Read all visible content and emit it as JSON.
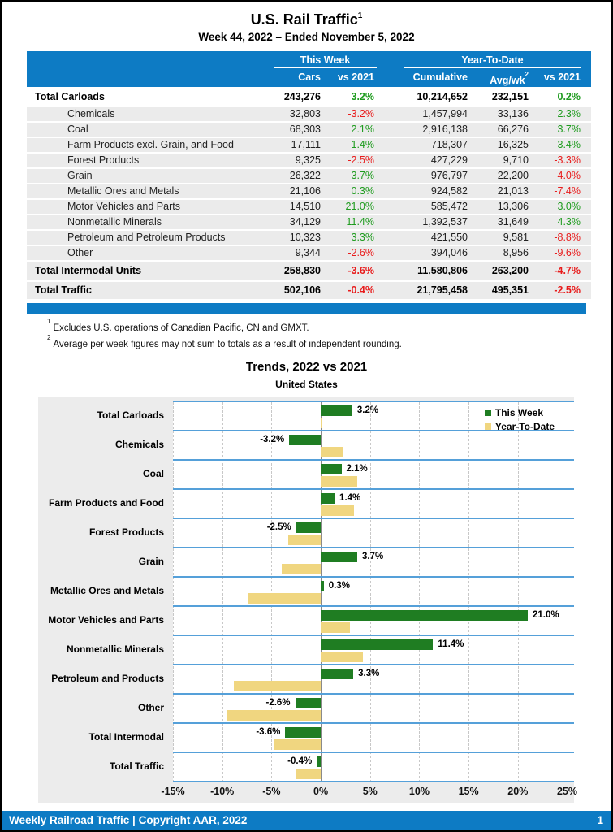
{
  "page": {
    "title": "U.S. Rail Traffic",
    "title_superscript": "1",
    "subtitle": "Week 44, 2022 – Ended November 5, 2022"
  },
  "table": {
    "group_headers": {
      "this_week": "This Week",
      "year_to_date": "Year-To-Date"
    },
    "columns": [
      "Cars",
      "vs 2021",
      "Cumulative",
      "Avg/wk",
      "vs 2021"
    ],
    "avg_wk_superscript": "2",
    "rows": [
      {
        "label": "Total Carloads",
        "cars": "243,276",
        "vs": "3.2%",
        "cumulative": "10,214,652",
        "avg": "232,151",
        "ytd_vs": "0.2%",
        "style": "total-first"
      },
      {
        "label": "Chemicals",
        "cars": "32,803",
        "vs": "-3.2%",
        "cumulative": "1,457,994",
        "avg": "33,136",
        "ytd_vs": "2.3%",
        "style": "sub"
      },
      {
        "label": "Coal",
        "cars": "68,303",
        "vs": "2.1%",
        "cumulative": "2,916,138",
        "avg": "66,276",
        "ytd_vs": "3.7%",
        "style": "sub"
      },
      {
        "label": "Farm Products excl. Grain, and Food",
        "cars": "17,111",
        "vs": "1.4%",
        "cumulative": "718,307",
        "avg": "16,325",
        "ytd_vs": "3.4%",
        "style": "sub"
      },
      {
        "label": "Forest Products",
        "cars": "9,325",
        "vs": "-2.5%",
        "cumulative": "427,229",
        "avg": "9,710",
        "ytd_vs": "-3.3%",
        "style": "sub"
      },
      {
        "label": "Grain",
        "cars": "26,322",
        "vs": "3.7%",
        "cumulative": "976,797",
        "avg": "22,200",
        "ytd_vs": "-4.0%",
        "style": "sub"
      },
      {
        "label": "Metallic Ores and Metals",
        "cars": "21,106",
        "vs": "0.3%",
        "cumulative": "924,582",
        "avg": "21,013",
        "ytd_vs": "-7.4%",
        "style": "sub"
      },
      {
        "label": "Motor Vehicles and Parts",
        "cars": "14,510",
        "vs": "21.0%",
        "cumulative": "585,472",
        "avg": "13,306",
        "ytd_vs": "3.0%",
        "style": "sub"
      },
      {
        "label": "Nonmetallic Minerals",
        "cars": "34,129",
        "vs": "11.4%",
        "cumulative": "1,392,537",
        "avg": "31,649",
        "ytd_vs": "4.3%",
        "style": "sub"
      },
      {
        "label": "Petroleum and Petroleum Products",
        "cars": "10,323",
        "vs": "3.3%",
        "cumulative": "421,550",
        "avg": "9,581",
        "ytd_vs": "-8.8%",
        "style": "sub"
      },
      {
        "label": "Other",
        "cars": "9,344",
        "vs": "-2.6%",
        "cumulative": "394,046",
        "avg": "8,956",
        "ytd_vs": "-9.6%",
        "style": "sub"
      },
      {
        "label": "Total Intermodal Units",
        "cars": "258,830",
        "vs": "-3.6%",
        "cumulative": "11,580,806",
        "avg": "263,200",
        "ytd_vs": "-4.7%",
        "style": "total"
      },
      {
        "label": "Total Traffic",
        "cars": "502,106",
        "vs": "-0.4%",
        "cumulative": "21,795,458",
        "avg": "495,351",
        "ytd_vs": "-2.5%",
        "style": "total"
      }
    ]
  },
  "footnotes": [
    {
      "sup": "1",
      "text": "Excludes U.S. operations of Canadian Pacific, CN and GMXT."
    },
    {
      "sup": "2",
      "text": "Average per week figures may not sum to totals as a result of independent rounding."
    }
  ],
  "chart_data": {
    "type": "bar",
    "orientation": "horizontal",
    "title": "Trends, 2022 vs 2021",
    "subtitle": "United States",
    "categories": [
      "Total Carloads",
      "Chemicals",
      "Coal",
      "Farm Products and Food",
      "Forest Products",
      "Grain",
      "Metallic Ores and Metals",
      "Motor Vehicles and Parts",
      "Nonmetallic Minerals",
      "Petroleum and Products",
      "Other",
      "Total Intermodal",
      "Total Traffic"
    ],
    "series": [
      {
        "name": "This Week",
        "color": "#1f7d22",
        "values": [
          3.2,
          -3.2,
          2.1,
          1.4,
          -2.5,
          3.7,
          0.3,
          21.0,
          11.4,
          3.3,
          -2.6,
          -3.6,
          -0.4
        ]
      },
      {
        "name": "Year-To-Date",
        "color": "#f0d680",
        "values": [
          0.2,
          2.3,
          3.7,
          3.4,
          -3.3,
          -4.0,
          -7.4,
          3.0,
          4.3,
          -8.8,
          -9.6,
          -4.7,
          -2.5
        ]
      }
    ],
    "bar_labels": [
      "3.2%",
      "-3.2%",
      "2.1%",
      "1.4%",
      "-2.5%",
      "3.7%",
      "0.3%",
      "21.0%",
      "11.4%",
      "3.3%",
      "-2.6%",
      "-3.6%",
      "-0.4%"
    ],
    "xlim": [
      -15,
      25
    ],
    "x_ticks": [
      "-15%",
      "-10%",
      "-5%",
      "0%",
      "5%",
      "10%",
      "15%",
      "20%",
      "25%"
    ],
    "grid": "vertical-dashed",
    "legend_position": "top-right"
  },
  "footer": {
    "text": "Weekly Railroad Traffic | Copyright AAR, 2022",
    "page_number": "1"
  },
  "colors": {
    "accent_blue": "#0d7bc4",
    "positive_green_text": "#1e9b1e",
    "negative_red_text": "#e81c1c",
    "bar_green": "#1f7d22",
    "bar_yellow": "#f0d680",
    "band_line_blue": "#55a0d9",
    "panel_gray": "#ececec",
    "row_gray": "#ebebeb"
  }
}
